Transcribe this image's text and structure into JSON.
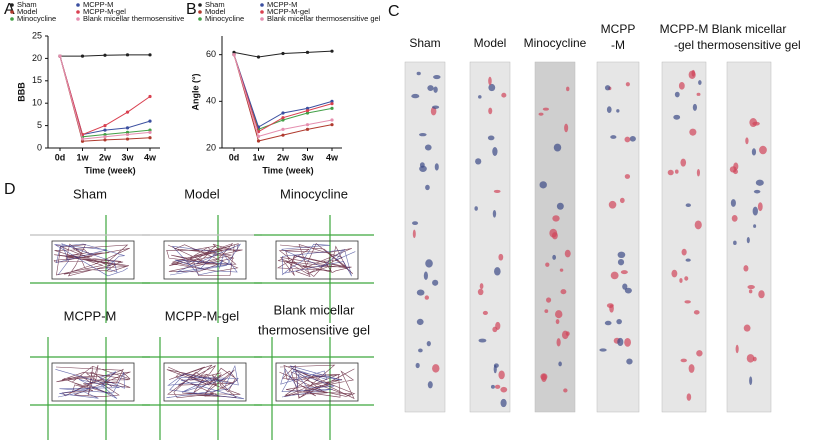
{
  "chart_data": [
    {
      "type": "line",
      "panel_label": "A",
      "xlabel": "Time (week)",
      "ylabel": "BBB",
      "categories": [
        "0d",
        "1w",
        "2w",
        "3w",
        "4w"
      ],
      "ylim": [
        0,
        25
      ],
      "yticks": [
        0,
        5,
        10,
        15,
        20,
        25
      ],
      "series": [
        {
          "name": "Sham",
          "color": "#222222",
          "values": [
            20.5,
            20.5,
            20.7,
            20.8,
            20.8
          ]
        },
        {
          "name": "Model",
          "color": "#b03a2e",
          "values": [
            20.5,
            1.5,
            1.8,
            2,
            2.3
          ]
        },
        {
          "name": "Minocycline",
          "color": "#43a047",
          "values": [
            20.5,
            2.5,
            3,
            3.5,
            4
          ]
        },
        {
          "name": "MCPP-M",
          "color": "#3b4fa0",
          "values": [
            20.5,
            3,
            4,
            4.5,
            6
          ]
        },
        {
          "name": "MCPP-M-gel",
          "color": "#d94050",
          "values": [
            20.5,
            3,
            5,
            8,
            11.5
          ]
        },
        {
          "name": "Blank micellar thermosensitive",
          "color": "#e58fb0",
          "values": [
            20.5,
            2,
            2.5,
            3,
            3.5
          ]
        }
      ]
    },
    {
      "type": "line",
      "panel_label": "B",
      "xlabel": "Time (week)",
      "ylabel": "Angle (°)",
      "categories": [
        "0d",
        "1w",
        "2w",
        "3w",
        "4w"
      ],
      "ylim": [
        20,
        68
      ],
      "yticks": [
        20,
        40,
        60
      ],
      "series": [
        {
          "name": "Sham",
          "color": "#222222",
          "values": [
            61,
            59,
            60.5,
            61,
            61.5
          ]
        },
        {
          "name": "Model",
          "color": "#b03a2e",
          "values": [
            60,
            23,
            25.5,
            28,
            30
          ]
        },
        {
          "name": "Minocycline",
          "color": "#43a047",
          "values": [
            60,
            28,
            32,
            35,
            37
          ]
        },
        {
          "name": "MCPP-M",
          "color": "#3b4fa0",
          "values": [
            60,
            29,
            35,
            37,
            40
          ]
        },
        {
          "name": "MCPP-M-gel",
          "color": "#d94050",
          "values": [
            60,
            27,
            33,
            36,
            39
          ]
        },
        {
          "name": "Blank micellar thermosensitive gel",
          "color": "#e58fb0",
          "values": [
            60,
            25,
            28,
            30,
            32
          ]
        }
      ]
    }
  ],
  "panel_c": {
    "label": "C",
    "columns": [
      [
        "Sham"
      ],
      [
        "Model"
      ],
      [
        "Minocycline"
      ],
      [
        "MCPP",
        "-M"
      ],
      [
        "MCPP-M",
        "-gel"
      ],
      [
        "Blank micellar",
        "thermosensitive gel"
      ]
    ]
  },
  "panel_d": {
    "label": "D",
    "titles": [
      [
        "Sham"
      ],
      [
        "Model"
      ],
      [
        "Minocycline"
      ],
      [
        "MCPP-M"
      ],
      [
        "MCPP-M-gel"
      ],
      [
        "Blank micellar",
        "thermosensitive gel"
      ]
    ]
  }
}
